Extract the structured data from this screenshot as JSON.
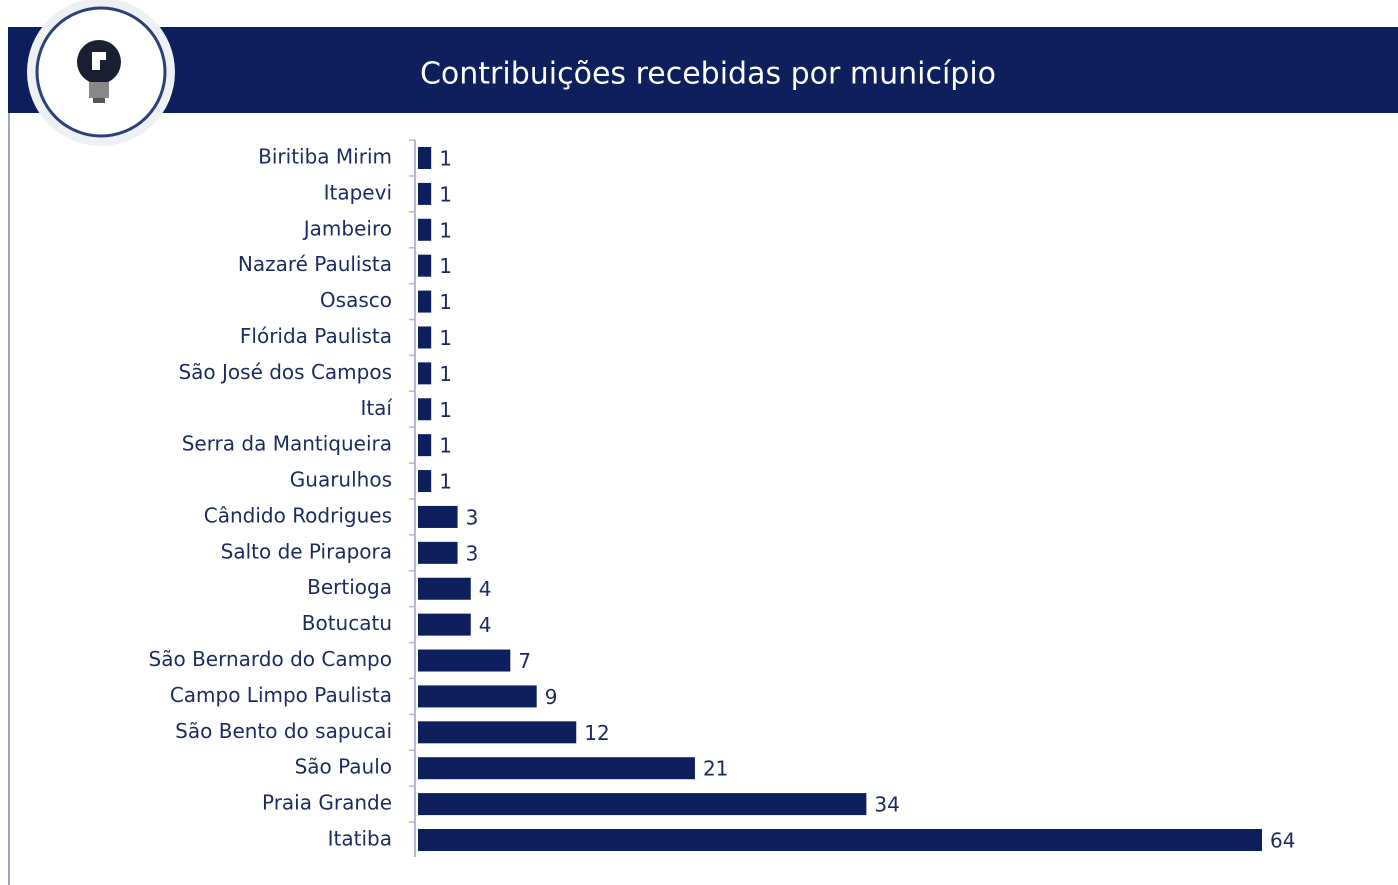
{
  "chart_data": {
    "type": "bar",
    "orientation": "horizontal",
    "title": "Contribuições recebidas por município",
    "categories": [
      "Biritiba Mirim",
      "Itapevi",
      "Jambeiro",
      "Nazaré Paulista",
      "Osasco",
      "Flórida Paulista",
      "São José dos Campos",
      "Itaí",
      "Serra da Mantiqueira",
      "Guarulhos",
      "Cândido Rodrigues",
      "Salto de Pirapora",
      "Bertioga",
      "Botucatu",
      "São Bernardo do Campo",
      "Campo Limpo Paulista",
      "São Bento do sapucai",
      "São Paulo",
      "Praia Grande",
      "Itatiba"
    ],
    "values": [
      1,
      1,
      1,
      1,
      1,
      1,
      1,
      1,
      1,
      1,
      3,
      3,
      4,
      4,
      7,
      9,
      12,
      21,
      34,
      64
    ],
    "color": "#0d1f5c"
  }
}
